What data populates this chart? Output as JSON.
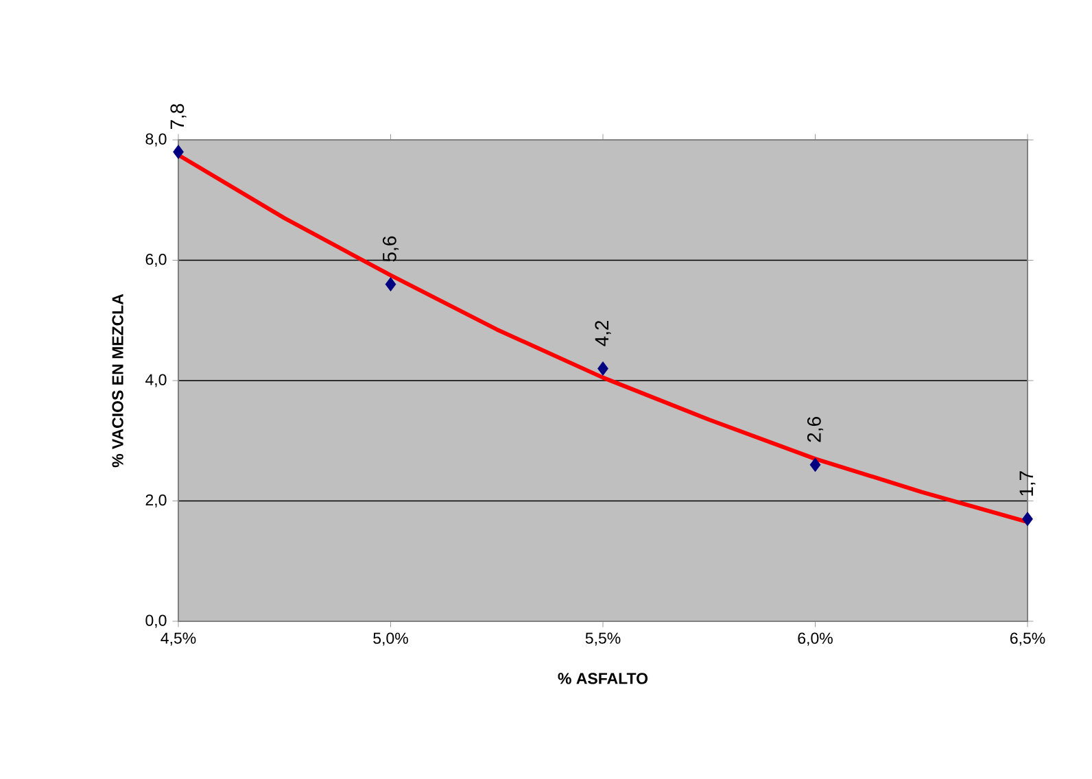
{
  "chart_data": {
    "type": "scatter",
    "xlabel": "% ASFALTO",
    "ylabel": "% VACIOS EN MEZCLA",
    "xlim": [
      4.5,
      6.5
    ],
    "xticks": [
      {
        "value": 4.5,
        "label": "4,5%"
      },
      {
        "value": 5.0,
        "label": "5,0%"
      },
      {
        "value": 5.5,
        "label": "5,5%"
      },
      {
        "value": 6.0,
        "label": "6,0%"
      },
      {
        "value": 6.5,
        "label": "6,5%"
      }
    ],
    "ylim": [
      0,
      8
    ],
    "yticks": [
      {
        "value": 0,
        "label": "0,0"
      },
      {
        "value": 2,
        "label": "2,0"
      },
      {
        "value": 4,
        "label": "4,0"
      },
      {
        "value": 6,
        "label": "6,0"
      },
      {
        "value": 8,
        "label": "8,0"
      }
    ],
    "grid": "y",
    "series": [
      {
        "color": "#000080",
        "marker": "diamond",
        "x": [
          4.5,
          5.0,
          5.5,
          6.0,
          6.5
        ],
        "values": [
          7.8,
          5.6,
          4.2,
          2.6,
          1.7
        ],
        "value_labels": [
          "7,8",
          "5,6",
          "4,2",
          "2,6",
          "1,7"
        ]
      },
      {
        "type": "line",
        "color": "#ff0000",
        "x": [
          4.5,
          4.75,
          5.0,
          5.25,
          5.5,
          5.75,
          6.0,
          6.25,
          6.5
        ],
        "values": [
          7.75,
          6.7,
          5.75,
          4.85,
          4.05,
          3.35,
          2.7,
          2.15,
          1.65
        ]
      }
    ]
  }
}
